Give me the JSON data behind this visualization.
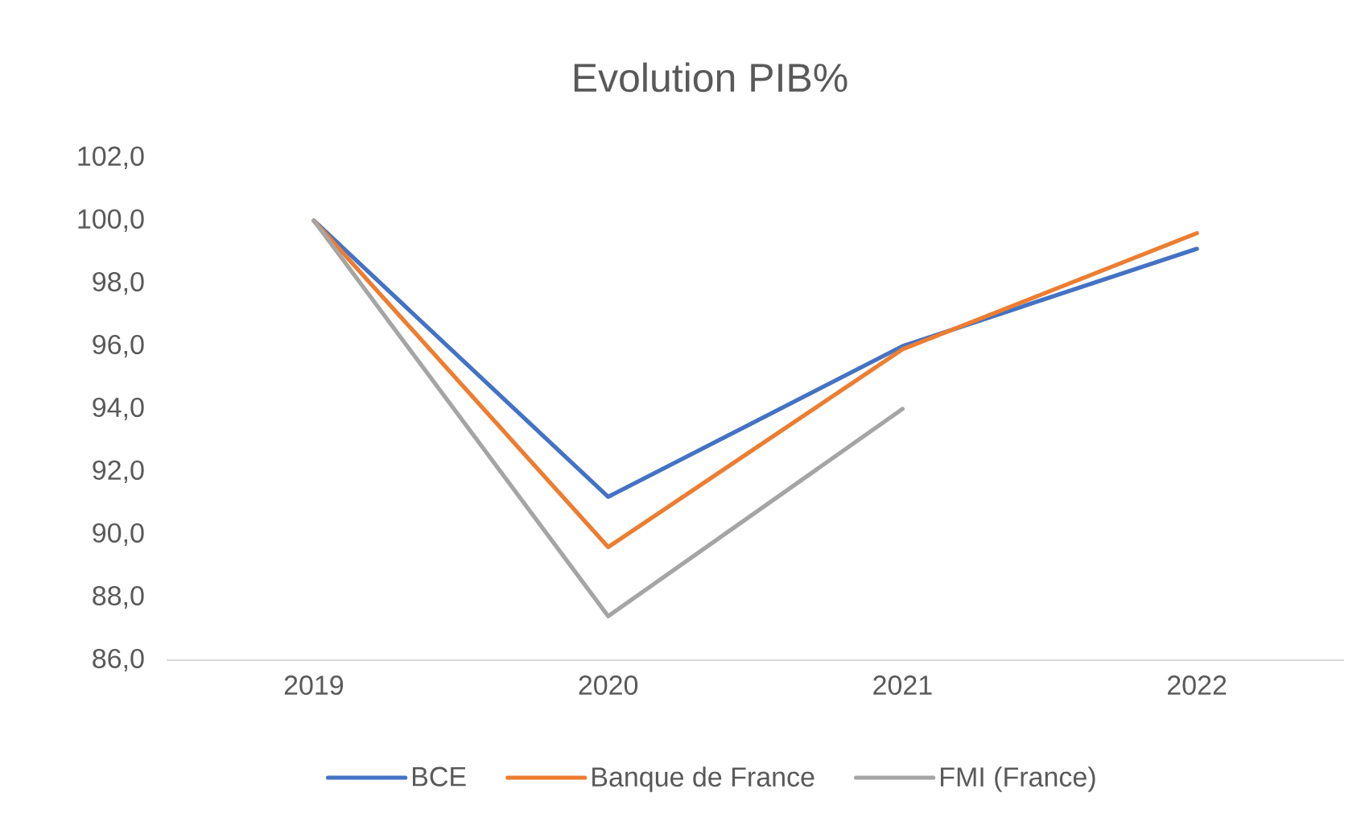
{
  "chart_data": {
    "type": "line",
    "title": "Evolution PIB%",
    "categories": [
      "2019",
      "2020",
      "2021",
      "2022"
    ],
    "series": [
      {
        "name": "BCE",
        "color": "#4472c4",
        "values": [
          100.0,
          91.2,
          96.0,
          99.1
        ]
      },
      {
        "name": "Banque de France",
        "color": "#ed7d31",
        "values": [
          100.0,
          89.6,
          95.9,
          99.6
        ]
      },
      {
        "name": "FMI (France)",
        "color": "#a5a5a5",
        "values": [
          100.0,
          87.4,
          94.0,
          null
        ]
      }
    ],
    "ylim": [
      86,
      102
    ],
    "yticks": [
      {
        "value": 86,
        "label": "86,0"
      },
      {
        "value": 88,
        "label": "88,0"
      },
      {
        "value": 90,
        "label": "90,0"
      },
      {
        "value": 92,
        "label": "92,0"
      },
      {
        "value": 94,
        "label": "94,0"
      },
      {
        "value": 96,
        "label": "96,0"
      },
      {
        "value": 98,
        "label": "98,0"
      },
      {
        "value": 100,
        "label": "100,0"
      },
      {
        "value": 102,
        "label": "102,0"
      }
    ],
    "legend": "bottom"
  }
}
